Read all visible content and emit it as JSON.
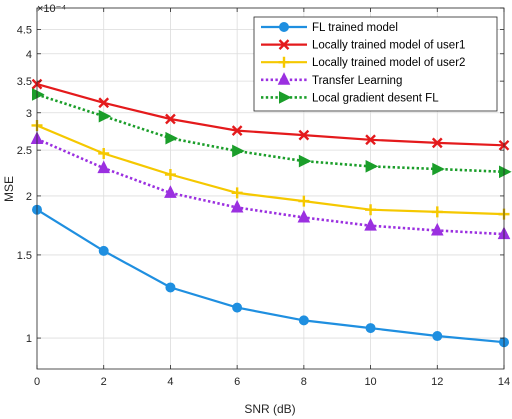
{
  "chart_data": {
    "type": "line",
    "title": "",
    "xlabel": "SNR (dB)",
    "ylabel": "MSE",
    "y_exponent_label": "×10⁻⁴",
    "y_scale": "log",
    "x": [
      0,
      2,
      4,
      6,
      8,
      10,
      12,
      14
    ],
    "xlim": [
      0,
      14
    ],
    "xticks": [
      "0",
      "2",
      "4",
      "6",
      "8",
      "10",
      "12",
      "14"
    ],
    "ylim": [
      0.86,
      5.0
    ],
    "ytick_values": [
      1,
      1.5,
      2,
      2.5,
      3,
      3.5,
      4,
      4.5,
      5
    ],
    "yticks": [
      "1",
      "1.5",
      "2",
      "2.5",
      "3",
      "3.5",
      "4",
      "4.5",
      "5"
    ],
    "grid": true,
    "legend_position": "top-right",
    "series": [
      {
        "name": "FL trained model",
        "color": "#1f8fe0",
        "marker": "circle",
        "line_style": "solid",
        "values": [
          1.87,
          1.53,
          1.28,
          1.16,
          1.09,
          1.05,
          1.01,
          0.98
        ]
      },
      {
        "name": "Locally trained model of user1",
        "color": "#e41a1c",
        "marker": "x",
        "line_style": "solid",
        "values": [
          3.45,
          3.15,
          2.91,
          2.75,
          2.69,
          2.63,
          2.59,
          2.56
        ]
      },
      {
        "name": "Locally trained model of user2",
        "color": "#f5c800",
        "marker": "plus",
        "line_style": "solid",
        "values": [
          2.82,
          2.46,
          2.22,
          2.03,
          1.95,
          1.87,
          1.85,
          1.83
        ]
      },
      {
        "name": "Transfer Learning",
        "color": "#9b30e0",
        "marker": "triangle-up",
        "line_style": "dotted",
        "values": [
          2.64,
          2.29,
          2.03,
          1.89,
          1.8,
          1.73,
          1.69,
          1.66
        ]
      },
      {
        "name": "Local gradient desent FL",
        "color": "#1b9e2a",
        "marker": "triangle-right",
        "line_style": "dotted",
        "values": [
          3.28,
          2.95,
          2.65,
          2.49,
          2.37,
          2.31,
          2.28,
          2.25
        ]
      }
    ]
  }
}
